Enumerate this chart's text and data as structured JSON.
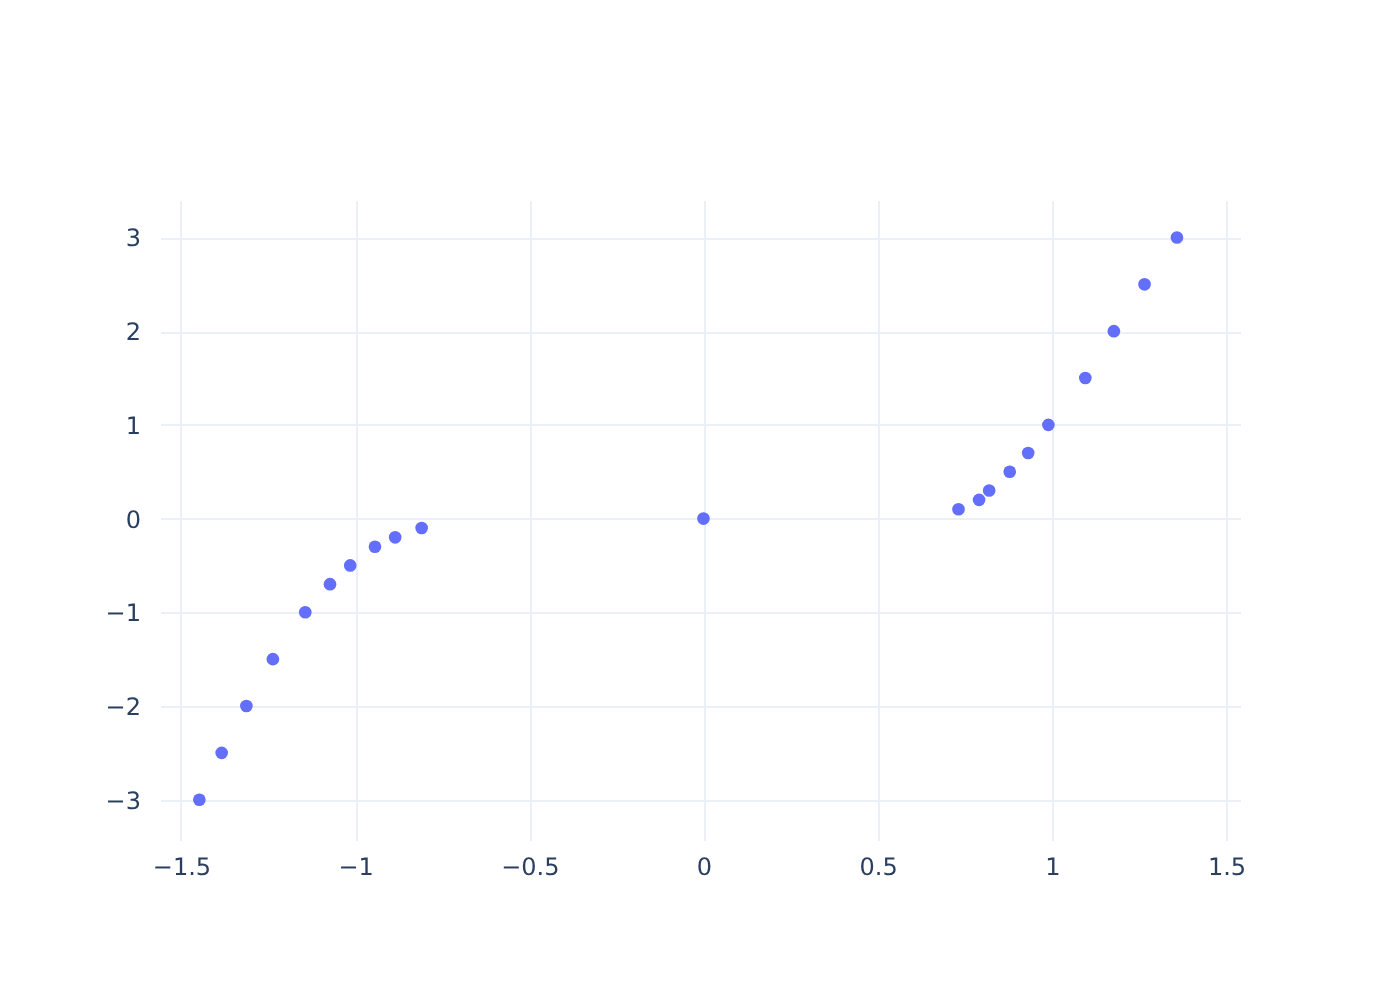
{
  "chart_data": {
    "type": "scatter",
    "xlim": [
      -1.56,
      1.54
    ],
    "ylim": [
      -3.43,
      3.4
    ],
    "xticks": [
      -1.5,
      -1,
      -0.5,
      0,
      0.5,
      1,
      1.5
    ],
    "yticks": [
      -3,
      -2,
      -1,
      0,
      1,
      2,
      3
    ],
    "grid": true,
    "marker": "circle",
    "series": [
      {
        "color": "#636efa",
        "x": [
          -1.447,
          -1.383,
          -1.312,
          -1.236,
          -1.143,
          -1.072,
          -1.014,
          -0.943,
          -0.885,
          -0.809,
          0,
          0.732,
          0.791,
          0.82,
          0.879,
          0.932,
          0.99,
          1.096,
          1.178,
          1.266,
          1.359
        ],
        "values": [
          -3,
          -2.5,
          -2,
          -1.5,
          -1,
          -0.7,
          -0.5,
          -0.3,
          -0.2,
          -0.1,
          0,
          0.1,
          0.2,
          0.3,
          0.5,
          0.7,
          1,
          1.5,
          2,
          2.5,
          3
        ]
      }
    ]
  }
}
